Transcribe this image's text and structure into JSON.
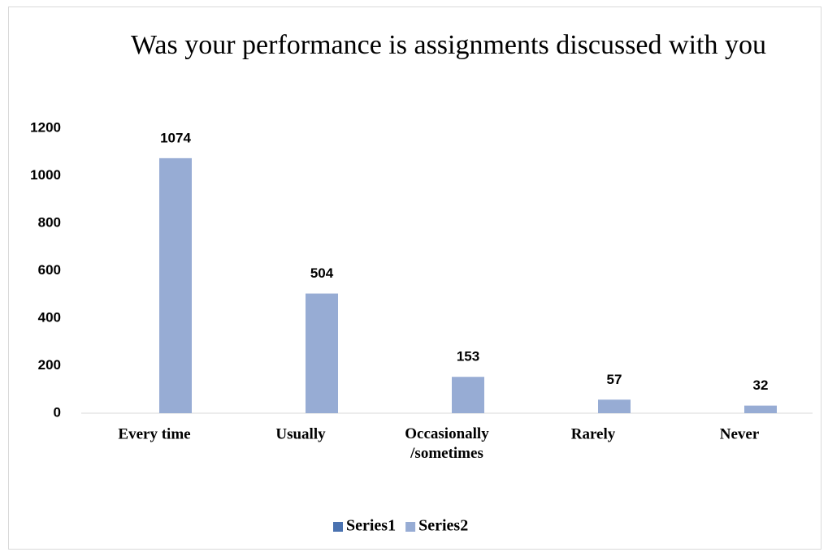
{
  "chart_data": {
    "type": "bar",
    "title": "Was your performance is assignments discussed with you",
    "categories": [
      "Every time",
      "Usually",
      "Occasionally /sometimes",
      "Rarely",
      "Never"
    ],
    "series": [
      {
        "name": "Series1",
        "color": "#4a72b0",
        "values": [
          null,
          null,
          null,
          null,
          null
        ]
      },
      {
        "name": "Series2",
        "color": "#97acd4",
        "values": [
          1074,
          504,
          153,
          57,
          32
        ]
      }
    ],
    "ylim": [
      0,
      1200
    ],
    "yticks": [
      0,
      200,
      400,
      600,
      800,
      1000,
      1200
    ],
    "grid": false,
    "legend": "bottom"
  }
}
